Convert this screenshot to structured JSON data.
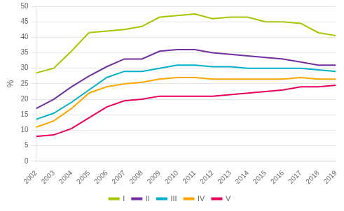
{
  "chart_data": {
    "type": "line",
    "x": [
      2002,
      2003,
      2004,
      2005,
      2006,
      2007,
      2008,
      2009,
      2010,
      2011,
      2012,
      2013,
      2014,
      2015,
      2016,
      2017,
      2018,
      2019
    ],
    "series": [
      {
        "name": "I",
        "color": "#a8c400",
        "values": [
          28.5,
          30.0,
          35.5,
          41.5,
          42.0,
          42.5,
          43.5,
          46.5,
          47.0,
          47.5,
          46.0,
          46.5,
          46.5,
          45.0,
          45.0,
          44.5,
          41.5,
          40.5
        ]
      },
      {
        "name": "II",
        "color": "#7030a0",
        "values": [
          17.0,
          20.0,
          24.0,
          27.5,
          30.5,
          33.0,
          33.0,
          35.5,
          36.0,
          36.0,
          35.0,
          34.5,
          34.0,
          33.5,
          33.0,
          32.0,
          31.0,
          31.0
        ]
      },
      {
        "name": "III",
        "color": "#00b0c8",
        "values": [
          13.5,
          15.5,
          19.0,
          23.0,
          27.0,
          29.0,
          29.0,
          30.0,
          31.0,
          31.0,
          30.5,
          30.5,
          30.0,
          30.0,
          30.0,
          30.0,
          29.5,
          29.0
        ]
      },
      {
        "name": "IV",
        "color": "#ffa500",
        "values": [
          11.0,
          13.0,
          17.0,
          22.0,
          24.0,
          25.0,
          25.5,
          26.5,
          27.0,
          27.0,
          26.5,
          26.5,
          26.5,
          26.5,
          26.5,
          27.0,
          26.5,
          26.5
        ]
      },
      {
        "name": "V",
        "color": "#e8005a",
        "values": [
          8.0,
          8.5,
          10.5,
          14.0,
          17.5,
          19.5,
          20.0,
          21.0,
          21.0,
          21.0,
          21.0,
          21.5,
          22.0,
          22.5,
          23.0,
          24.0,
          24.0,
          24.5
        ]
      }
    ],
    "ylabel": "%",
    "xlim": [
      2002,
      2019
    ],
    "xticks": [
      2002,
      2003,
      2004,
      2005,
      2006,
      2007,
      2008,
      2009,
      2010,
      2011,
      2012,
      2013,
      2014,
      2015,
      2016,
      2017,
      2018,
      2019
    ],
    "ylim": [
      0,
      50
    ],
    "yticks": [
      0,
      5,
      10,
      15,
      20,
      25,
      30,
      35,
      40,
      45,
      50
    ],
    "grid": "y",
    "legend": "bottom"
  }
}
